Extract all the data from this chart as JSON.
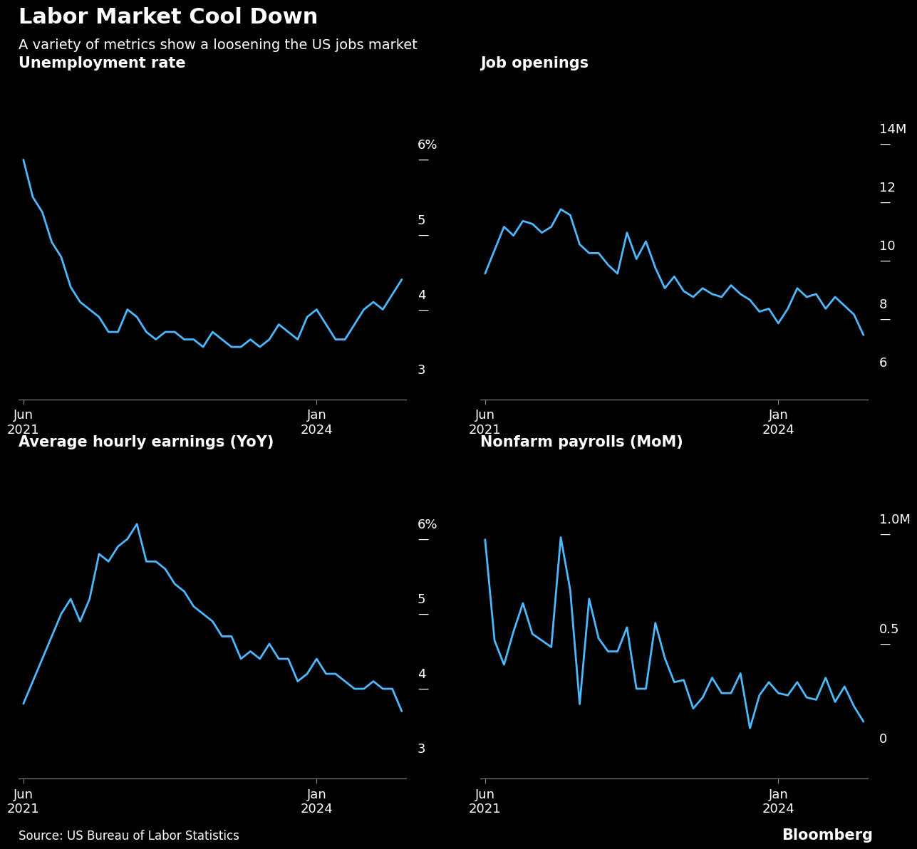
{
  "title": "Labor Market Cool Down",
  "subtitle": "A variety of metrics show a loosening the US jobs market",
  "source": "Source: US Bureau of Labor Statistics",
  "bloomberg": "Bloomberg",
  "background_color": "#000000",
  "text_color": "#ffffff",
  "line_color": "#4db8ff",
  "axis_color": "#888888",
  "panels": [
    {
      "title": "Unemployment rate",
      "yticks": [
        3,
        4,
        5,
        6
      ],
      "ytick_labels": [
        "3",
        "4",
        "5",
        "6%"
      ],
      "ytick_has_dash": [
        false,
        true,
        true,
        true
      ],
      "ylim": [
        2.7,
        6.8
      ],
      "data": [
        5.9,
        5.4,
        5.2,
        4.8,
        4.6,
        4.2,
        4.0,
        3.9,
        3.8,
        3.6,
        3.6,
        3.9,
        3.8,
        3.6,
        3.5,
        3.6,
        3.6,
        3.5,
        3.5,
        3.4,
        3.6,
        3.5,
        3.4,
        3.4,
        3.5,
        3.4,
        3.5,
        3.7,
        3.6,
        3.5,
        3.8,
        3.9,
        3.7,
        3.5,
        3.5,
        3.7,
        3.9,
        4.0,
        3.9,
        4.1,
        4.3
      ]
    },
    {
      "title": "Job openings",
      "yticks": [
        6,
        8,
        10,
        12,
        14
      ],
      "ytick_labels": [
        "6",
        "8",
        "10",
        "12",
        "14M"
      ],
      "ytick_has_dash": [
        false,
        true,
        true,
        true,
        true
      ],
      "ylim": [
        5.0,
        15.5
      ],
      "data": [
        9.3,
        10.1,
        10.9,
        10.6,
        11.1,
        11.0,
        10.7,
        10.9,
        11.5,
        11.3,
        10.3,
        10.0,
        10.0,
        9.6,
        9.3,
        10.7,
        9.8,
        10.4,
        9.5,
        8.8,
        9.2,
        8.7,
        8.5,
        8.8,
        8.6,
        8.5,
        8.9,
        8.6,
        8.4,
        8.0,
        8.1,
        7.6,
        8.1,
        8.8,
        8.5,
        8.6,
        8.1,
        8.5,
        8.2,
        7.9,
        7.2
      ]
    },
    {
      "title": "Average hourly earnings (YoY)",
      "yticks": [
        3,
        4,
        5,
        6
      ],
      "ytick_labels": [
        "3",
        "4",
        "5",
        "6%"
      ],
      "ytick_has_dash": [
        false,
        true,
        true,
        true
      ],
      "ylim": [
        2.7,
        6.8
      ],
      "data": [
        3.7,
        4.0,
        4.3,
        4.6,
        4.9,
        5.1,
        4.8,
        5.1,
        5.7,
        5.6,
        5.8,
        5.9,
        6.1,
        5.6,
        5.6,
        5.5,
        5.3,
        5.2,
        5.0,
        4.9,
        4.8,
        4.6,
        4.6,
        4.3,
        4.4,
        4.3,
        4.5,
        4.3,
        4.3,
        4.0,
        4.1,
        4.3,
        4.1,
        4.1,
        4.0,
        3.9,
        3.9,
        4.0,
        3.9,
        3.9,
        3.6
      ]
    },
    {
      "title": "Nonfarm payrolls (MoM)",
      "yticks": [
        0,
        0.5,
        1.0
      ],
      "ytick_labels": [
        "0",
        "0.5",
        "1.0M"
      ],
      "ytick_has_dash": [
        false,
        true,
        true
      ],
      "ylim": [
        -0.15,
        1.25
      ],
      "data": [
        0.94,
        0.48,
        0.37,
        0.52,
        0.65,
        0.51,
        0.48,
        0.45,
        0.95,
        0.71,
        0.19,
        0.67,
        0.49,
        0.43,
        0.43,
        0.54,
        0.26,
        0.26,
        0.56,
        0.4,
        0.29,
        0.3,
        0.17,
        0.22,
        0.31,
        0.24,
        0.24,
        0.33,
        0.08,
        0.23,
        0.29,
        0.24,
        0.23,
        0.29,
        0.22,
        0.21,
        0.31,
        0.2,
        0.27,
        0.18,
        0.11
      ]
    }
  ],
  "n_months": 41,
  "jan2024_idx": 31,
  "title_fontsize": 22,
  "subtitle_fontsize": 14,
  "panel_title_fontsize": 15,
  "tick_label_fontsize": 13,
  "source_fontsize": 12,
  "bloomberg_fontsize": 15
}
